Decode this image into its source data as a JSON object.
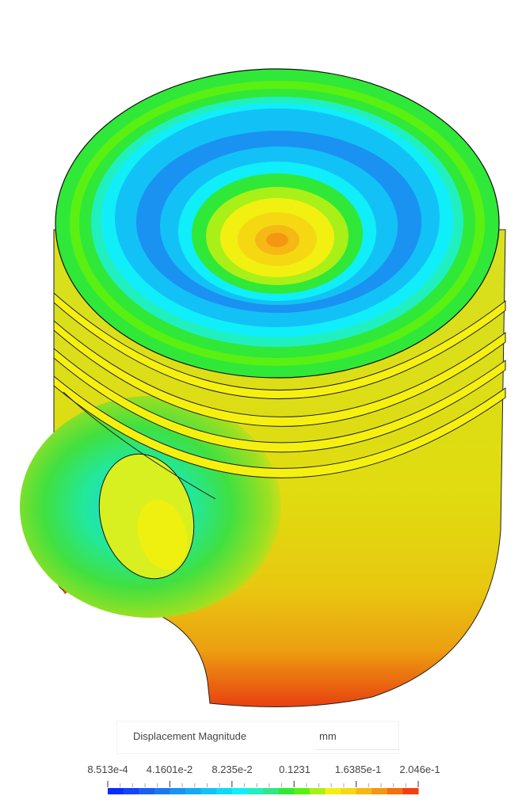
{
  "legend": {
    "title": "Displacement Magnitude",
    "unit": "mm",
    "labels": [
      "8.513e-4",
      "4.1601e-2",
      "8.235e-2",
      "0.1231",
      "1.6385e-1",
      "2.046e-1"
    ],
    "colors": [
      "#0a2dff",
      "#1244f8",
      "#1a5ef5",
      "#1c78f2",
      "#1a92f2",
      "#15aaf4",
      "#12c2f6",
      "#10d8f8",
      "#10eefa",
      "#20f0c0",
      "#2ee888",
      "#30e838",
      "#5af012",
      "#a8f018",
      "#f2f010",
      "#f5d812",
      "#f5b814",
      "#f59612",
      "#f56e10",
      "#f24010"
    ],
    "tick_groups": 5
  }
}
